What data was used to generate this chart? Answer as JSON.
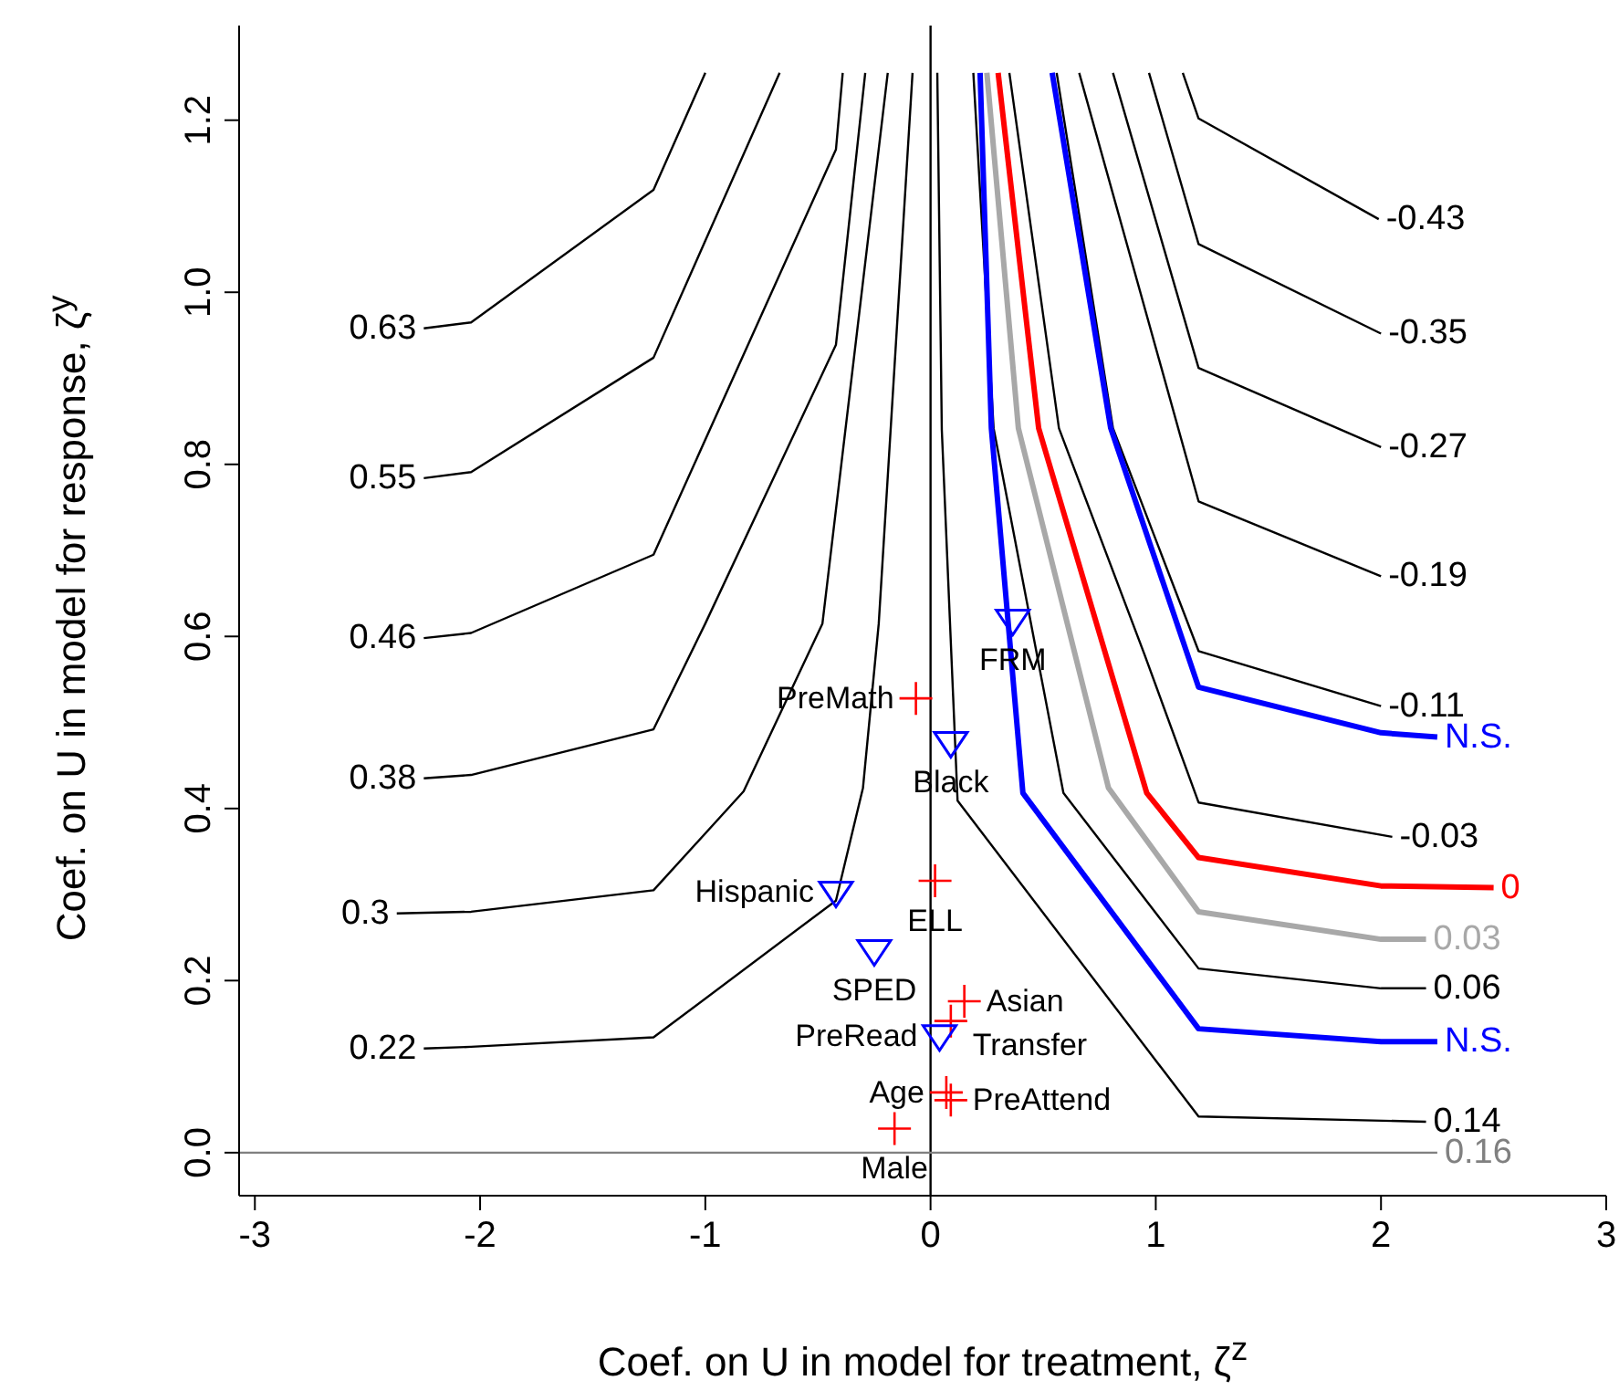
{
  "chart_data": {
    "type": "line",
    "xlabel": "Coef. on U in model for treatment, ζ$^{z}$",
    "ylabel": "Coef. on U in model for response, ζ$^{y}$",
    "xlim": [
      -3.07,
      3.0
    ],
    "xticks": [
      -3,
      -2,
      -1,
      0,
      1,
      2,
      3
    ],
    "ylim": [
      -0.05,
      1.31
    ],
    "yticks": [
      {
        "value": 0,
        "label": "0.0"
      },
      {
        "value": 0.2,
        "label": "0.2"
      },
      {
        "value": 0.4,
        "label": "0.4"
      },
      {
        "value": 0.6,
        "label": "0.6"
      },
      {
        "value": 0.8,
        "label": "0.8"
      },
      {
        "value": 1,
        "label": "1.0"
      },
      {
        "value": 1.2,
        "label": "1.2"
      }
    ],
    "grid": false,
    "legend": false,
    "marker": "none",
    "line_style": "solid",
    "ref_lines": [
      {
        "axis": "x",
        "value": 0,
        "color": "#000000"
      }
    ],
    "series": [
      {
        "type": "line",
        "name": "0.63",
        "color": "#000000",
        "x": [
          -2.25,
          -2.04,
          -1.23,
          -1.0
        ],
        "values": [
          0.958,
          0.965,
          1.119,
          1.255
        ]
      },
      {
        "type": "line",
        "name": "0.55",
        "color": "#000000",
        "x": [
          -2.25,
          -2.04,
          -1.23,
          -0.67
        ],
        "values": [
          0.784,
          0.791,
          0.924,
          1.255
        ]
      },
      {
        "type": "line",
        "name": "0.46",
        "color": "#000000",
        "x": [
          -2.25,
          -2.04,
          -1.23,
          -0.42,
          -0.39
        ],
        "values": [
          0.598,
          0.604,
          0.695,
          1.166,
          1.255
        ]
      },
      {
        "type": "line",
        "name": "0.38",
        "color": "#000000",
        "x": [
          -2.25,
          -2.04,
          -1.23,
          -1.0,
          -0.42,
          -0.29
        ],
        "values": [
          0.435,
          0.439,
          0.492,
          0.615,
          0.939,
          1.255
        ]
      },
      {
        "type": "line",
        "name": "0.3",
        "color": "#000000",
        "x": [
          -2.37,
          -2.04,
          -1.23,
          -0.83,
          -0.48,
          -0.19
        ],
        "values": [
          0.278,
          0.28,
          0.305,
          0.42,
          0.615,
          1.255
        ]
      },
      {
        "type": "line",
        "name": "0.22",
        "color": "#000000",
        "x": [
          -2.25,
          -2.04,
          -1.23,
          -0.42,
          -0.3,
          -0.23,
          -0.08
        ],
        "values": [
          0.121,
          0.123,
          0.134,
          0.293,
          0.424,
          0.615,
          1.255
        ]
      },
      {
        "type": "line",
        "name": "-0.43",
        "color": "#000000",
        "x": [
          1.99,
          1.19,
          1.12
        ],
        "values": [
          1.085,
          1.202,
          1.255
        ]
      },
      {
        "type": "line",
        "name": "-0.35",
        "color": "#000000",
        "x": [
          2.0,
          1.19,
          0.97
        ],
        "values": [
          0.952,
          1.056,
          1.255
        ]
      },
      {
        "type": "line",
        "name": "-0.27",
        "color": "#000000",
        "x": [
          2.0,
          1.19,
          0.81
        ],
        "values": [
          0.82,
          0.912,
          1.255
        ]
      },
      {
        "type": "line",
        "name": "-0.19",
        "color": "#000000",
        "x": [
          2.0,
          1.19,
          0.66
        ],
        "values": [
          0.67,
          0.757,
          1.255
        ]
      },
      {
        "type": "line",
        "name": "-0.11",
        "color": "#000000",
        "x": [
          2.0,
          1.19,
          0.81,
          0.56
        ],
        "values": [
          0.519,
          0.583,
          0.842,
          1.255
        ]
      },
      {
        "type": "line",
        "name": "N.S.",
        "color": "#0000ff",
        "x": [
          2.25,
          2.0,
          1.19,
          0.8,
          0.54
        ],
        "values": [
          0.483,
          0.488,
          0.541,
          0.842,
          1.255
        ]
      },
      {
        "type": "line",
        "name": "-0.03",
        "color": "#000000",
        "x": [
          2.05,
          1.19,
          0.95,
          0.57,
          0.35
        ],
        "values": [
          0.367,
          0.407,
          0.579,
          0.842,
          1.255
        ]
      },
      {
        "type": "line",
        "name": "0",
        "color": "#ff0000",
        "x": [
          2.5,
          2.0,
          1.19,
          0.96,
          0.48,
          0.3
        ],
        "values": [
          0.308,
          0.31,
          0.343,
          0.418,
          0.842,
          1.255
        ]
      },
      {
        "type": "line",
        "name": "0.03",
        "color": "#a8a8a8",
        "x": [
          2.2,
          2.0,
          1.19,
          0.79,
          0.39,
          0.25
        ],
        "values": [
          0.248,
          0.248,
          0.28,
          0.424,
          0.842,
          1.255
        ]
      },
      {
        "type": "line",
        "name": "0.06",
        "color": "#000000",
        "x": [
          2.2,
          2.0,
          1.19,
          0.59,
          0.28,
          0.19
        ],
        "values": [
          0.191,
          0.191,
          0.214,
          0.418,
          0.842,
          1.255
        ]
      },
      {
        "type": "line",
        "name": "N.S.",
        "color": "#0000ff",
        "x": [
          2.25,
          2.0,
          1.19,
          0.41,
          0.27,
          0.22
        ],
        "values": [
          0.129,
          0.129,
          0.144,
          0.418,
          0.842,
          1.255
        ]
      },
      {
        "type": "line",
        "name": "0.14",
        "color": "#000000",
        "x": [
          2.2,
          1.19,
          0.12,
          0.05,
          0.03
        ],
        "values": [
          0.036,
          0.042,
          0.409,
          0.84,
          1.255
        ]
      },
      {
        "name": "0.16",
        "color": "#808080",
        "x": [
          2.25,
          -3.07
        ],
        "values": [
          0,
          0
        ]
      },
      {
        "type": "scatter",
        "marker": "cross",
        "color": "#ff0000",
        "x": [
          -0.065,
          0.02,
          0.15,
          0.09,
          0.07,
          0.09,
          -0.16
        ],
        "values": [
          0.528,
          0.316,
          0.176,
          0.153,
          0.07,
          0.061,
          0.028
        ]
      },
      {
        "type": "scatter",
        "marker": "triangle",
        "color": "#0000ff",
        "x": [
          0.365,
          0.09,
          -0.42,
          -0.25,
          0.04
        ],
        "values": [
          0.619,
          0.477,
          0.303,
          0.235,
          0.136
        ]
      }
    ],
    "annotations": [
      {
        "text": "PreMath",
        "x": -0.065,
        "y": 0.528
      },
      {
        "text": "ELL",
        "x": 0.02,
        "y": 0.316
      },
      {
        "text": "Asian",
        "x": 0.15,
        "y": 0.176
      },
      {
        "text": "Transfer",
        "x": 0.09,
        "y": 0.153
      },
      {
        "text": "Age",
        "x": 0.07,
        "y": 0.07
      },
      {
        "text": "PreAttend",
        "x": 0.09,
        "y": 0.061
      },
      {
        "text": "Male",
        "x": -0.16,
        "y": 0.028
      },
      {
        "text": "FRM",
        "x": 0.365,
        "y": 0.619
      },
      {
        "text": "Black",
        "x": 0.09,
        "y": 0.477
      },
      {
        "text": "Hispanic",
        "x": -0.42,
        "y": 0.303
      },
      {
        "text": "SPED",
        "x": -0.25,
        "y": 0.235
      },
      {
        "text": "PreRead",
        "x": 0.04,
        "y": 0.136
      }
    ]
  }
}
